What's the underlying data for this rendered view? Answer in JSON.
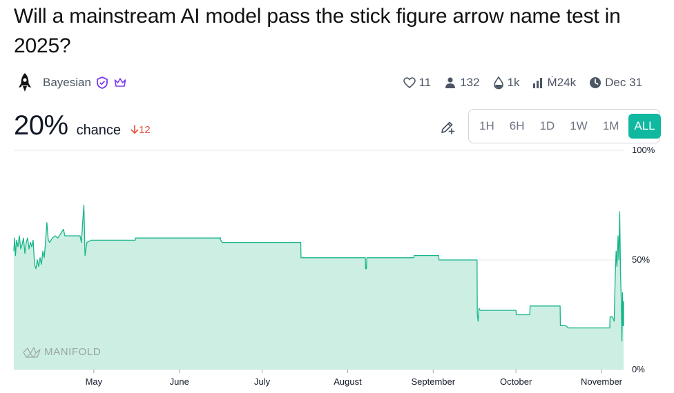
{
  "market": {
    "title": "Will a mainstream AI model pass the stick figure arrow name test in 2025?",
    "creator": "Bayesian",
    "stats": {
      "likes": "11",
      "traders": "132",
      "liquidity": "1k",
      "volume": "Ṁ24k",
      "close_date": "Dec 31"
    },
    "probability": "20%",
    "chance_label": "chance",
    "delta": "12"
  },
  "time_ranges": [
    "1H",
    "6H",
    "1D",
    "1W",
    "1M",
    "ALL"
  ],
  "selected_range": "ALL",
  "watermark": "MANIFOLD",
  "colors": {
    "line": "#15b58a",
    "fill": "#cdeee3",
    "accent": "#11b8a0",
    "delta": "#e5533d",
    "badge": "#7c3aed"
  },
  "icons": [
    "rocket-icon",
    "shield-check-icon",
    "crown-icon",
    "heart-icon",
    "user-icon",
    "droplet-icon",
    "bar-chart-icon",
    "clock-icon",
    "pencil-plus-icon",
    "arrow-down-icon"
  ],
  "chart_data": {
    "type": "area",
    "x_tick_labels": [
      "May",
      "June",
      "July",
      "August",
      "September",
      "October",
      "November"
    ],
    "x_tick_days": [
      29,
      60,
      90,
      121,
      152,
      182,
      213
    ],
    "y_tick_labels": [
      "100%",
      "50%",
      "0%"
    ],
    "ylim": [
      0,
      100
    ],
    "x_unit": "days since Apr 2, 2025",
    "x_range": [
      0,
      221
    ],
    "series": [
      {
        "points": [
          [
            0,
            54
          ],
          [
            0.3,
            60
          ],
          [
            0.6,
            52
          ],
          [
            1,
            59
          ],
          [
            1.5,
            56
          ],
          [
            2,
            61
          ],
          [
            2.5,
            55
          ],
          [
            3,
            57
          ],
          [
            3.5,
            60
          ],
          [
            4,
            53
          ],
          [
            4.5,
            58
          ],
          [
            5,
            60
          ],
          [
            5.5,
            55
          ],
          [
            6,
            58
          ],
          [
            6.5,
            56
          ],
          [
            7,
            59
          ],
          [
            7.5,
            48
          ],
          [
            8,
            46
          ],
          [
            8.5,
            50
          ],
          [
            9,
            47
          ],
          [
            9.5,
            51
          ],
          [
            10,
            48
          ],
          [
            10.5,
            54
          ],
          [
            11,
            51
          ],
          [
            11.5,
            58
          ],
          [
            12,
            67
          ],
          [
            12.5,
            59
          ],
          [
            13,
            58
          ],
          [
            14,
            60
          ],
          [
            15,
            61
          ],
          [
            16,
            60
          ],
          [
            17,
            62
          ],
          [
            18,
            64
          ],
          [
            18.5,
            61
          ],
          [
            20,
            61
          ],
          [
            23,
            61
          ],
          [
            24,
            61
          ],
          [
            24.5,
            58
          ],
          [
            25,
            68
          ],
          [
            25.4,
            75
          ],
          [
            25.8,
            52
          ],
          [
            26.5,
            58
          ],
          [
            28,
            59
          ],
          [
            34,
            59
          ],
          [
            40,
            59
          ],
          [
            44,
            59
          ],
          [
            44.1,
            60
          ],
          [
            60,
            60
          ],
          [
            75,
            60
          ],
          [
            74.5,
            60
          ],
          [
            75,
            59
          ],
          [
            75.5,
            58
          ],
          [
            90,
            58
          ],
          [
            104,
            58
          ],
          [
            104.1,
            51
          ],
          [
            110,
            51
          ],
          [
            125,
            51
          ],
          [
            127.4,
            51
          ],
          [
            127.5,
            46
          ],
          [
            127.8,
            46
          ],
          [
            127.9,
            50
          ],
          [
            128,
            51
          ],
          [
            140,
            51
          ],
          [
            145,
            51
          ],
          [
            145.1,
            52
          ],
          [
            150,
            52
          ],
          [
            154,
            52
          ],
          [
            154.1,
            50
          ],
          [
            165,
            50
          ],
          [
            167.9,
            50
          ],
          [
            168,
            25
          ],
          [
            168.3,
            22
          ],
          [
            168.6,
            28
          ],
          [
            169,
            27
          ],
          [
            175,
            27
          ],
          [
            182,
            27
          ],
          [
            182.1,
            25
          ],
          [
            187,
            25
          ],
          [
            187.1,
            29
          ],
          [
            198,
            29
          ],
          [
            198.1,
            20
          ],
          [
            200,
            20
          ],
          [
            201,
            19
          ],
          [
            210,
            19
          ],
          [
            216,
            19
          ],
          [
            216.1,
            24
          ],
          [
            217,
            24
          ],
          [
            217.6,
            22
          ],
          [
            218,
            44
          ],
          [
            218.3,
            54
          ],
          [
            218.6,
            47
          ],
          [
            219,
            61
          ],
          [
            219.3,
            50
          ],
          [
            219.6,
            72
          ],
          [
            219.9,
            43
          ],
          [
            220.2,
            30
          ],
          [
            220.4,
            13
          ],
          [
            220.6,
            35
          ],
          [
            220.8,
            20
          ],
          [
            221,
            31
          ],
          [
            221.2,
            20
          ],
          [
            221.4,
            30
          ],
          [
            221.6,
            20
          ],
          [
            222,
            20
          ]
        ]
      }
    ]
  }
}
